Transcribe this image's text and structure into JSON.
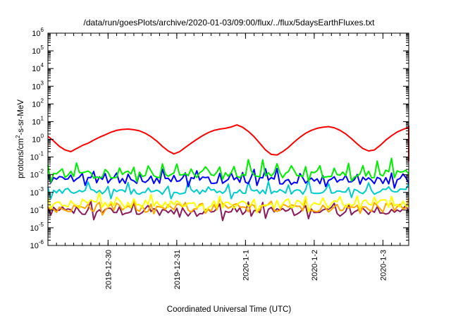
{
  "chart_data": {
    "type": "line",
    "title": "/data/run/goesPlots/archive/2020-01-03/09:00/flux/../flux/5daysEarthFluxes.txt",
    "xlabel": "Coordinated Universal Time (UTC)",
    "ylabel": {
      "prefix": "protons/cm",
      "sup": "2",
      "suffix": "-s-sr-MeV"
    },
    "y_scale": "log",
    "ylim": [
      1e-06,
      1000000.0
    ],
    "y_ticks": [
      {
        "value": 1e-06,
        "base": "10",
        "exp": "-6"
      },
      {
        "value": 1e-05,
        "base": "10",
        "exp": "-5"
      },
      {
        "value": 0.0001,
        "base": "10",
        "exp": "-4"
      },
      {
        "value": 0.001,
        "base": "10",
        "exp": "-3"
      },
      {
        "value": 0.01,
        "base": "10",
        "exp": "-2"
      },
      {
        "value": 0.1,
        "base": "10",
        "exp": "-1"
      },
      {
        "value": 1,
        "base": "10",
        "exp": "0"
      },
      {
        "value": 10,
        "base": "10",
        "exp": "1"
      },
      {
        "value": 100,
        "base": "10",
        "exp": "2"
      },
      {
        "value": 1000,
        "base": "10",
        "exp": "3"
      },
      {
        "value": 10000,
        "base": "10",
        "exp": "4"
      },
      {
        "value": 100000,
        "base": "10",
        "exp": "5"
      },
      {
        "value": 1000000,
        "base": "10",
        "exp": "6"
      }
    ],
    "xlim": [
      "2019-12-29T03:00",
      "2020-01-03T09:00"
    ],
    "x_ticks": [
      {
        "value": "2019-12-30T00:00",
        "label": "2019-12-30"
      },
      {
        "value": "2019-12-31T00:00",
        "label": "2019-12-31"
      },
      {
        "value": "2020-01-01T00:00",
        "label": "2020-1-1"
      },
      {
        "value": "2020-01-02T00:00",
        "label": "2020-1-2"
      },
      {
        "value": "2020-01-03T00:00",
        "label": "2020-1-3"
      }
    ],
    "grid": false,
    "legend": "none",
    "series": [
      {
        "color": "#ff0000",
        "x_step_hours": 2,
        "values": [
          1.5,
          0.8,
          0.4,
          0.25,
          0.2,
          0.3,
          0.45,
          0.6,
          0.9,
          1.3,
          1.8,
          2.5,
          3.2,
          3.6,
          3.8,
          3.5,
          3.0,
          2.2,
          1.4,
          0.8,
          0.4,
          0.22,
          0.15,
          0.2,
          0.35,
          0.6,
          1.0,
          1.6,
          2.4,
          3.2,
          3.8,
          4.2,
          5.0,
          6.5,
          4.8,
          2.8,
          1.4,
          0.6,
          0.25,
          0.14,
          0.13,
          0.2,
          0.35,
          0.7,
          1.3,
          2.2,
          3.2,
          4.2,
          4.8,
          5.2,
          4.5,
          3.2,
          2.0,
          1.1,
          0.55,
          0.3,
          0.22,
          0.25,
          0.45,
          0.9,
          1.6,
          2.6,
          3.6,
          4.8,
          5.6,
          5.0,
          3.8,
          2.3,
          1.3,
          0.6,
          0.3,
          0.22,
          0.25,
          0.4,
          0.7,
          1.2,
          1.9,
          2.6,
          3.2,
          3.6,
          3.4,
          2.8,
          2.0,
          1.2,
          0.6,
          0.25,
          0.1,
          0.06,
          0.08,
          2.0
        ]
      },
      {
        "color": "#00ee00",
        "x_step_hours": 1,
        "base": 0.011,
        "jitter": 0.22,
        "spike_every": 5,
        "spike_factor": 5
      },
      {
        "color": "#0000ff",
        "x_step_hours": 1,
        "base": 0.0048,
        "jitter": 0.2,
        "spike_every": 4,
        "spike_factor": 4
      },
      {
        "color": "#00cccc",
        "x_step_hours": 1,
        "base": 0.0011,
        "jitter": 0.15,
        "spike_every": 7,
        "spike_factor": 4
      },
      {
        "color": "#ffff00",
        "x_step_hours": 1,
        "base": 0.00022,
        "jitter": 0.25,
        "spike_every": 6,
        "spike_factor": 3
      },
      {
        "color": "#ffa500",
        "x_step_hours": 1,
        "base": 0.00013,
        "jitter": 0.25,
        "spike_every": 6,
        "spike_factor": 2.5
      },
      {
        "color": "#8b1a5a",
        "x_step_hours": 1,
        "base": 8e-05,
        "jitter": 0.25,
        "spike_every": 5,
        "spike_factor": 3
      }
    ]
  }
}
